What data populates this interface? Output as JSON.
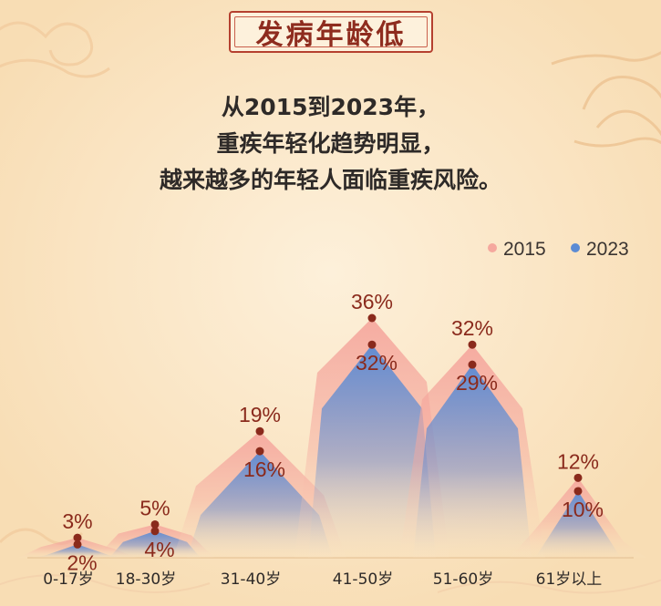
{
  "header": {
    "title": "发病年龄低",
    "lines": [
      "从2015到2023年，",
      "重疾年轻化趋势明显，",
      "越来越多的年轻人面临重疾风险。"
    ]
  },
  "colors": {
    "background": "#fbe6c4",
    "accent": "#8e2c1e",
    "series_2015": "#f5a89e",
    "series_2023": "#5b8bd4",
    "label": "#8a2a1c"
  },
  "chart_data": {
    "type": "area",
    "categories": [
      "0-17岁",
      "18-30岁",
      "31-40岁",
      "41-50岁",
      "51-60岁",
      "61岁以上"
    ],
    "series": [
      {
        "name": "2015",
        "values": [
          3,
          5,
          19,
          36,
          32,
          12
        ]
      },
      {
        "name": "2023",
        "values": [
          2,
          4,
          16,
          32,
          29,
          10
        ]
      }
    ],
    "value_labels": {
      "2015": [
        "3%",
        "5%",
        "19%",
        "36%",
        "32%",
        "12%"
      ],
      "2023": [
        "2%",
        "4%",
        "16%",
        "32%",
        "29%",
        "10%"
      ]
    },
    "ylim": [
      0,
      36
    ],
    "legend": "top-right",
    "grid": false
  }
}
